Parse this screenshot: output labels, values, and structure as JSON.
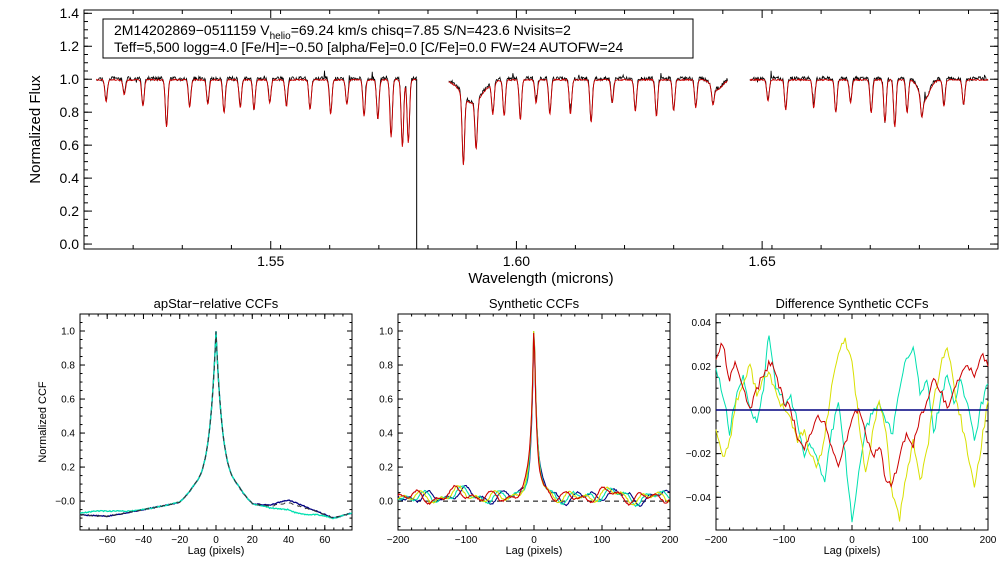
{
  "chart_data": [
    {
      "id": "spectrum",
      "type": "line",
      "xlabel": "Wavelength (microns)",
      "ylabel": "Normalized Flux",
      "xlim": [
        1.512,
        1.698
      ],
      "ylim": [
        -0.03,
        1.42
      ],
      "xticks": [
        1.55,
        1.6,
        1.65
      ],
      "xtick_labels": [
        "1.55",
        "1.60",
        "1.65"
      ],
      "yticks": [
        0.0,
        0.2,
        0.4,
        0.6,
        0.8,
        1.0,
        1.2,
        1.4
      ],
      "ytick_labels": [
        "0.0",
        "0.2",
        "0.4",
        "0.6",
        "0.8",
        "1.0",
        "1.2",
        "1.4"
      ],
      "annotation": {
        "line1_prefix": "2M14202869−0511159  V",
        "line1_sub": "helio",
        "line1_suffix": "=69.24 km/s  chisq=7.85  S/N=423.6  Nvisits=2",
        "line2": "Teff=5,500 logg=4.0 [Fe/H]=−0.50 [alpha/Fe]=0.0 [C/Fe]=0.0 FW=24 AUTOFW=24"
      },
      "chips": [
        [
          1.5145,
          1.5797
        ],
        [
          1.5862,
          1.643
        ],
        [
          1.6475,
          1.696
        ]
      ],
      "spike": {
        "x": 1.5797,
        "y_low": -0.03,
        "y_high": 1.0
      },
      "absorption_lines": [
        [
          1.5165,
          0.87
        ],
        [
          1.5202,
          0.91
        ],
        [
          1.524,
          0.84
        ],
        [
          1.5288,
          0.71
        ],
        [
          1.5335,
          0.83
        ],
        [
          1.5372,
          0.85
        ],
        [
          1.5405,
          0.8
        ],
        [
          1.5438,
          0.83
        ],
        [
          1.5466,
          0.82
        ],
        [
          1.5498,
          0.86
        ],
        [
          1.5532,
          0.84
        ],
        [
          1.558,
          0.82
        ],
        [
          1.5622,
          0.79
        ],
        [
          1.5655,
          0.85
        ],
        [
          1.569,
          0.78
        ],
        [
          1.5718,
          0.76
        ],
        [
          1.5745,
          0.65
        ],
        [
          1.5768,
          0.59
        ],
        [
          1.578,
          0.62
        ],
        [
          1.5892,
          0.58
        ],
        [
          1.5918,
          0.71
        ],
        [
          1.5952,
          0.81
        ],
        [
          1.5975,
          0.78
        ],
        [
          1.6008,
          0.76
        ],
        [
          1.604,
          0.86
        ],
        [
          1.6068,
          0.79
        ],
        [
          1.611,
          0.79
        ],
        [
          1.6152,
          0.74
        ],
        [
          1.6195,
          0.86
        ],
        [
          1.6242,
          0.81
        ],
        [
          1.6285,
          0.78
        ],
        [
          1.632,
          0.81
        ],
        [
          1.6365,
          0.83
        ],
        [
          1.64,
          0.89
        ],
        [
          1.6512,
          0.87
        ],
        [
          1.6548,
          0.82
        ],
        [
          1.6605,
          0.83
        ],
        [
          1.665,
          0.8
        ],
        [
          1.668,
          0.86
        ],
        [
          1.6722,
          0.8
        ],
        [
          1.675,
          0.74
        ],
        [
          1.677,
          0.71
        ],
        [
          1.6795,
          0.8
        ],
        [
          1.6825,
          0.88
        ],
        [
          1.687,
          0.84
        ],
        [
          1.691,
          0.85
        ]
      ],
      "broad_features": [
        [
          1.591,
          0.86,
          0.003
        ],
        [
          1.6408,
          0.94,
          0.0015
        ],
        [
          1.683,
          0.88,
          0.0015
        ]
      ],
      "series": [
        {
          "name": "observed",
          "color": "#000000"
        },
        {
          "name": "synthetic",
          "color": "#cc0000"
        }
      ]
    },
    {
      "id": "apstar_ccf",
      "type": "line",
      "title": "apStar−relative CCFs",
      "xlabel": "Lag (pixels)",
      "ylabel": "Normalized CCF",
      "xlim": [
        -75,
        75
      ],
      "ylim": [
        -0.17,
        1.1
      ],
      "xticks": [
        -60,
        -40,
        -20,
        0,
        20,
        40,
        60
      ],
      "xtick_labels": [
        "−60",
        "−40",
        "−20",
        "0",
        "20",
        "40",
        "60"
      ],
      "yticks": [
        0.0,
        0.2,
        0.4,
        0.6,
        0.8,
        1.0
      ],
      "ytick_labels": [
        "−0.0",
        "0.2",
        "0.4",
        "0.6",
        "0.8",
        "1.0"
      ],
      "peak": 1.0,
      "width": 4.5,
      "baseline_points": [
        [
          -75,
          -0.08
        ],
        [
          -60,
          -0.09
        ],
        [
          -40,
          -0.05
        ],
        [
          -20,
          -0.01
        ],
        [
          -12,
          0.06
        ],
        [
          12,
          0.06
        ],
        [
          20,
          -0.02
        ],
        [
          30,
          -0.03
        ],
        [
          40,
          -0.01
        ],
        [
          55,
          -0.06
        ],
        [
          65,
          -0.1
        ],
        [
          75,
          -0.07
        ]
      ],
      "series": [
        {
          "name": "ccf_1",
          "color": "#000080",
          "offset": 0.0,
          "shift": [
            [
              40,
              0.015
            ]
          ]
        },
        {
          "name": "ccf_2",
          "color": "#00e0b0",
          "offset": 0.0,
          "shift": [
            [
              -62,
              0.03
            ],
            [
              44,
              -0.045
            ]
          ]
        },
        {
          "name": "ccf_3",
          "color": "#333333",
          "offset": 0.0,
          "dashed": true,
          "shift": [
            [
              40,
              0.0
            ]
          ]
        }
      ]
    },
    {
      "id": "synthetic_ccf",
      "type": "line",
      "title": "Synthetic CCFs",
      "xlabel": "Lag (pixels)",
      "ylabel": "",
      "xlim": [
        -200,
        200
      ],
      "ylim": [
        -0.17,
        1.1
      ],
      "xticks": [
        -200,
        -100,
        0,
        100,
        200
      ],
      "xtick_labels": [
        "−200",
        "−100",
        "0",
        "100",
        "200"
      ],
      "yticks": [
        0.0,
        0.2,
        0.4,
        0.6,
        0.8,
        1.0
      ],
      "ytick_labels": [
        "0.0",
        "0.2",
        "0.4",
        "0.6",
        "0.8",
        "1.0"
      ],
      "peak": 1.0,
      "width": 4.5,
      "reference_line": 0.0,
      "series": [
        {
          "name": "synthetic_1",
          "color": "#000080",
          "phase": 0.0
        },
        {
          "name": "synthetic_2",
          "color": "#00e0b0",
          "phase": 0.7
        },
        {
          "name": "synthetic_3",
          "color": "#d8e000",
          "phase": 1.4
        },
        {
          "name": "synthetic_4",
          "color": "#cc0000",
          "phase": 2.1
        }
      ]
    },
    {
      "id": "difference_ccf",
      "type": "line",
      "title": "Difference Synthetic CCFs",
      "xlabel": "Lag (pixels)",
      "ylabel": "",
      "xlim": [
        -200,
        200
      ],
      "ylim": [
        -0.055,
        0.044
      ],
      "xticks": [
        -200,
        -100,
        0,
        100,
        200
      ],
      "xtick_labels": [
        "−200",
        "−100",
        "0",
        "100",
        "200"
      ],
      "yticks": [
        -0.04,
        -0.02,
        0.0,
        0.02,
        0.04
      ],
      "ytick_labels": [
        "−0.04",
        "−0.02",
        "0.00",
        "0.02",
        "0.04"
      ],
      "reference_line": 0.0,
      "series": [
        {
          "name": "diff_zero",
          "color": "#000080",
          "points": [
            [
              -200,
              0.0
            ],
            [
              200,
              0.0
            ]
          ]
        },
        {
          "name": "diff_cyan",
          "color": "#00e0b0",
          "points": [
            [
              -200,
              0.02
            ],
            [
              -190,
              0.008
            ],
            [
              -180,
              -0.01
            ],
            [
              -172,
              0.004
            ],
            [
              -160,
              0.016
            ],
            [
              -150,
              0.0
            ],
            [
              -140,
              -0.006
            ],
            [
              -130,
              0.01
            ],
            [
              -122,
              0.036
            ],
            [
              -112,
              0.01
            ],
            [
              -100,
              0.004
            ],
            [
              -90,
              0.006
            ],
            [
              -80,
              -0.006
            ],
            [
              -70,
              -0.02
            ],
            [
              -60,
              -0.016
            ],
            [
              -50,
              -0.024
            ],
            [
              -40,
              -0.032
            ],
            [
              -30,
              -0.01
            ],
            [
              -20,
              0.002
            ],
            [
              -10,
              -0.02
            ],
            [
              0,
              -0.052
            ],
            [
              10,
              -0.03
            ],
            [
              20,
              -0.01
            ],
            [
              30,
              0.0
            ],
            [
              40,
              0.002
            ],
            [
              50,
              -0.006
            ],
            [
              60,
              -0.01
            ],
            [
              70,
              0.01
            ],
            [
              80,
              0.024
            ],
            [
              90,
              0.03
            ],
            [
              100,
              0.008
            ],
            [
              110,
              0.014
            ],
            [
              120,
              -0.01
            ],
            [
              130,
              0.004
            ],
            [
              140,
              0.016
            ],
            [
              150,
              0.004
            ],
            [
              160,
              0.014
            ],
            [
              170,
              0.002
            ],
            [
              180,
              -0.014
            ],
            [
              190,
              0.002
            ],
            [
              200,
              0.012
            ]
          ]
        },
        {
          "name": "diff_yellow",
          "color": "#d8e000",
          "points": [
            [
              -200,
              -0.008
            ],
            [
              -190,
              -0.022
            ],
            [
              -180,
              -0.014
            ],
            [
              -170,
              0.004
            ],
            [
              -160,
              0.012
            ],
            [
              -150,
              0.02
            ],
            [
              -140,
              0.008
            ],
            [
              -130,
              0.014
            ],
            [
              -120,
              0.016
            ],
            [
              -110,
              0.006
            ],
            [
              -100,
              0.0
            ],
            [
              -90,
              -0.004
            ],
            [
              -80,
              -0.014
            ],
            [
              -70,
              -0.01
            ],
            [
              -60,
              -0.022
            ],
            [
              -50,
              -0.026
            ],
            [
              -40,
              -0.012
            ],
            [
              -30,
              0.01
            ],
            [
              -20,
              0.026
            ],
            [
              -10,
              0.032
            ],
            [
              0,
              0.022
            ],
            [
              10,
              -0.004
            ],
            [
              20,
              -0.03
            ],
            [
              30,
              -0.012
            ],
            [
              40,
              0.004
            ],
            [
              50,
              -0.01
            ],
            [
              60,
              -0.04
            ],
            [
              70,
              -0.05
            ],
            [
              80,
              -0.03
            ],
            [
              90,
              -0.014
            ],
            [
              100,
              -0.032
            ],
            [
              110,
              -0.02
            ],
            [
              120,
              0.004
            ],
            [
              130,
              0.02
            ],
            [
              140,
              0.03
            ],
            [
              150,
              0.01
            ],
            [
              160,
              -0.004
            ],
            [
              170,
              -0.02
            ],
            [
              180,
              -0.036
            ],
            [
              190,
              -0.016
            ],
            [
              200,
              0.004
            ]
          ]
        },
        {
          "name": "diff_red",
          "color": "#cc0000",
          "points": [
            [
              -200,
              0.024
            ],
            [
              -190,
              0.03
            ],
            [
              -180,
              0.014
            ],
            [
              -172,
              0.022
            ],
            [
              -160,
              0.01
            ],
            [
              -150,
              0.0
            ],
            [
              -140,
              0.01
            ],
            [
              -130,
              0.016
            ],
            [
              -120,
              0.022
            ],
            [
              -110,
              0.014
            ],
            [
              -100,
              0.004
            ],
            [
              -90,
              0.0
            ],
            [
              -80,
              -0.012
            ],
            [
              -70,
              -0.018
            ],
            [
              -60,
              -0.01
            ],
            [
              -50,
              -0.002
            ],
            [
              -40,
              -0.006
            ],
            [
              -30,
              -0.018
            ],
            [
              -20,
              -0.024
            ],
            [
              -10,
              -0.016
            ],
            [
              0,
              -0.004
            ],
            [
              10,
              0.002
            ],
            [
              20,
              -0.012
            ],
            [
              30,
              -0.022
            ],
            [
              40,
              -0.016
            ],
            [
              50,
              -0.032
            ],
            [
              60,
              -0.034
            ],
            [
              70,
              -0.02
            ],
            [
              80,
              -0.01
            ],
            [
              90,
              -0.016
            ],
            [
              100,
              -0.004
            ],
            [
              110,
              0.004
            ],
            [
              120,
              0.014
            ],
            [
              130,
              0.01
            ],
            [
              140,
              0.0
            ],
            [
              150,
              0.01
            ],
            [
              160,
              0.016
            ],
            [
              170,
              0.022
            ],
            [
              180,
              0.014
            ],
            [
              190,
              0.026
            ],
            [
              200,
              0.02
            ]
          ]
        }
      ]
    }
  ]
}
